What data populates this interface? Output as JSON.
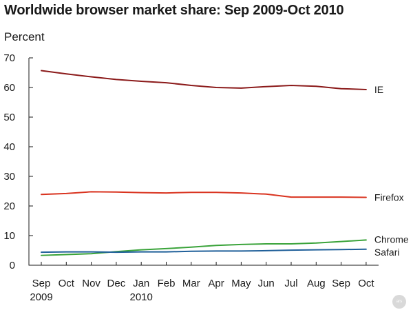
{
  "chart_data": {
    "type": "line",
    "title": "Worldwide browser market share: Sep 2009-Oct 2010",
    "ylabel": "Percent",
    "xlabel": "",
    "ylim": [
      0,
      70
    ],
    "yticks": [
      0,
      10,
      20,
      30,
      40,
      50,
      60,
      70
    ],
    "grid": false,
    "legend": "right-end labels",
    "categories": [
      "Sep",
      "Oct",
      "Nov",
      "Dec",
      "Jan",
      "Feb",
      "Mar",
      "Apr",
      "May",
      "Jun",
      "Jul",
      "Aug",
      "Sep",
      "Oct"
    ],
    "year_labels": [
      {
        "index": 0,
        "text": "2009"
      },
      {
        "index": 4,
        "text": "2010"
      }
    ],
    "series": [
      {
        "name": "IE",
        "color": "#8b1a1a",
        "values": [
          65.7,
          64.6,
          63.6,
          62.7,
          62.1,
          61.6,
          60.7,
          60.0,
          59.8,
          60.3,
          60.7,
          60.4,
          59.6,
          59.3
        ]
      },
      {
        "name": "Firefox",
        "color": "#d9331f",
        "values": [
          23.9,
          24.2,
          24.8,
          24.7,
          24.5,
          24.4,
          24.6,
          24.6,
          24.4,
          24.0,
          23.0,
          23.0,
          23.0,
          22.9
        ]
      },
      {
        "name": "Chrome",
        "color": "#3aa33a",
        "values": [
          3.3,
          3.6,
          3.9,
          4.6,
          5.2,
          5.6,
          6.1,
          6.7,
          7.0,
          7.2,
          7.2,
          7.5,
          8.0,
          8.5
        ]
      },
      {
        "name": "Safari",
        "color": "#1f5f99",
        "values": [
          4.4,
          4.5,
          4.5,
          4.4,
          4.5,
          4.5,
          4.7,
          4.8,
          4.8,
          4.9,
          5.1,
          5.2,
          5.3,
          5.4
        ]
      }
    ]
  },
  "watermark": "ars"
}
